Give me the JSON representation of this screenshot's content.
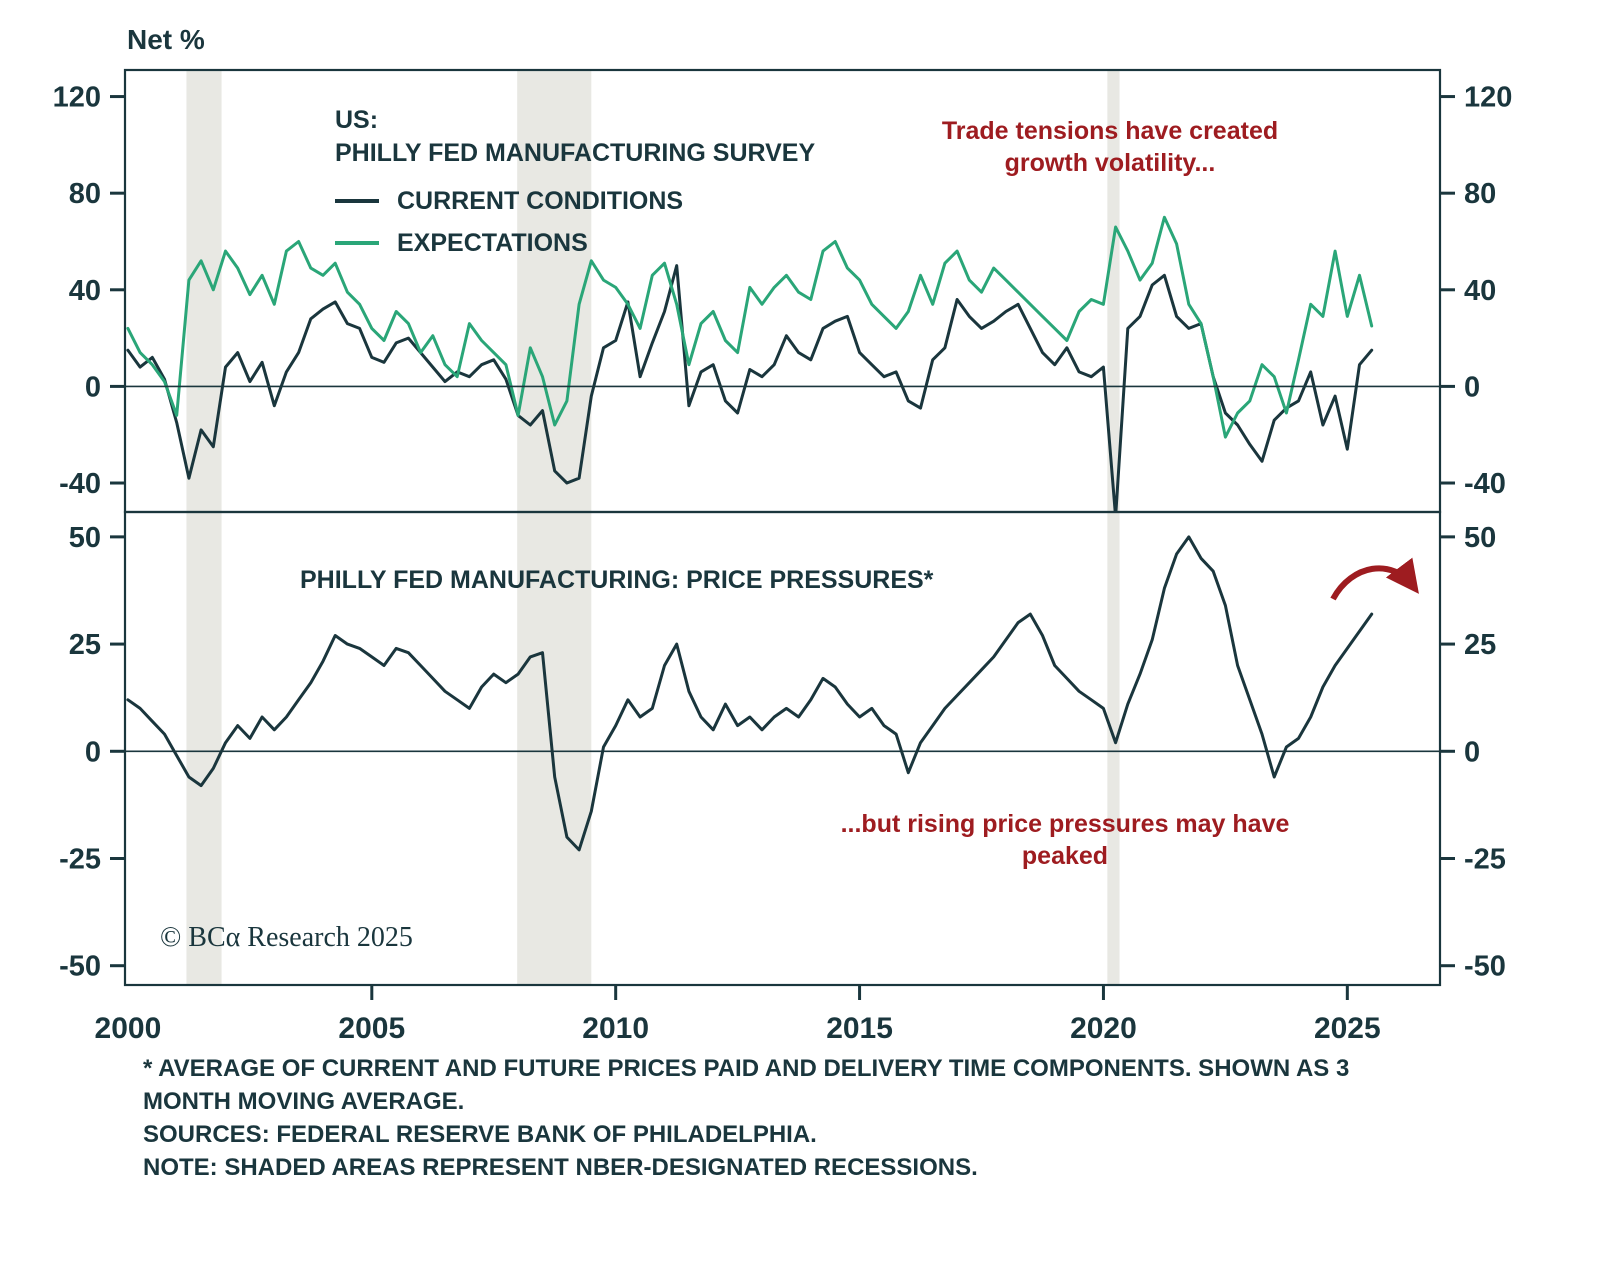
{
  "colors": {
    "navy": "#1a363d",
    "green": "#2aa678",
    "red": "#9e1c20",
    "recession_shading": "#e8e8e3"
  },
  "axis_title": "Net %",
  "top_panel": {
    "title_line1": "US:",
    "title_line2": "PHILLY FED MANUFACTURING SURVEY",
    "legend": [
      {
        "label": "CURRENT CONDITIONS",
        "color": "#1a363d"
      },
      {
        "label": "EXPECTATIONS",
        "color": "#2aa678"
      }
    ],
    "annotation": "Trade tensions have created growth volatility..."
  },
  "bottom_panel": {
    "title": "PHILLY FED MANUFACTURING: PRICE PRESSURES*",
    "annotation": "...but rising price pressures may have peaked"
  },
  "copyright": "© BCα Research 2025",
  "footnotes": [
    "* AVERAGE OF CURRENT AND FUTURE PRICES PAID AND DELIVERY TIME COMPONENTS. SHOWN AS 3 MONTH MOVING AVERAGE.",
    "SOURCES: FEDERAL RESERVE BANK OF PHILADELPHIA.",
    "NOTE: SHADED AREAS REPRESENT NBER-DESIGNATED RECESSIONS."
  ],
  "chart_data": [
    {
      "type": "line",
      "title": "US: PHILLY FED MANUFACTURING SURVEY",
      "ylabel": "Net %",
      "ylim": [
        -52,
        131
      ],
      "yticks": [
        120,
        80,
        40,
        0,
        -40
      ],
      "xlim": [
        1999.94,
        2026.9
      ],
      "xticks": [
        2000,
        2005,
        2010,
        2015,
        2020,
        2025
      ],
      "x_start": 2000,
      "x_step": 0.25,
      "grid": false,
      "legend_position": "upper-left",
      "recession_bands": [
        [
          2001.2,
          2001.92
        ],
        [
          2007.98,
          2009.5
        ],
        [
          2020.08,
          2020.33
        ]
      ],
      "series": [
        {
          "name": "CURRENT CONDITIONS",
          "color": "#1a363d",
          "values": [
            15,
            8,
            12,
            3,
            -15,
            -38,
            -18,
            -25,
            8,
            14,
            2,
            10,
            -8,
            6,
            14,
            28,
            32,
            35,
            26,
            24,
            12,
            10,
            18,
            20,
            14,
            8,
            2,
            6,
            4,
            9,
            11,
            3,
            -12,
            -16,
            -10,
            -35,
            -40,
            -38,
            -4,
            16,
            19,
            35,
            4,
            18,
            31,
            50,
            -8,
            6,
            9,
            -6,
            -11,
            7,
            4,
            9,
            21,
            14,
            11,
            24,
            27,
            29,
            14,
            9,
            4,
            6,
            -6,
            -9,
            11,
            16,
            36,
            29,
            24,
            27,
            31,
            34,
            24,
            14,
            9,
            16,
            6,
            4,
            8,
            -54,
            24,
            29,
            42,
            46,
            29,
            24,
            26,
            4,
            -11,
            -16,
            -24,
            -31,
            -14,
            -9,
            -6,
            6,
            -16,
            -4,
            -26,
            9,
            15
          ]
        },
        {
          "name": "EXPECTATIONS",
          "color": "#2aa678",
          "values": [
            24,
            14,
            9,
            2,
            -12,
            44,
            52,
            40,
            56,
            49,
            38,
            46,
            34,
            56,
            60,
            49,
            46,
            51,
            39,
            34,
            24,
            19,
            31,
            26,
            14,
            21,
            9,
            4,
            26,
            19,
            14,
            9,
            -12,
            16,
            4,
            -16,
            -6,
            34,
            52,
            44,
            41,
            34,
            24,
            46,
            51,
            34,
            9,
            26,
            31,
            19,
            14,
            41,
            34,
            41,
            46,
            39,
            36,
            56,
            60,
            49,
            44,
            34,
            29,
            24,
            31,
            46,
            34,
            51,
            56,
            44,
            39,
            49,
            44,
            39,
            34,
            29,
            24,
            19,
            31,
            36,
            34,
            66,
            56,
            44,
            51,
            70,
            59,
            34,
            26,
            4,
            -21,
            -11,
            -6,
            9,
            4,
            -11,
            11,
            34,
            29,
            56,
            29,
            46,
            25
          ]
        }
      ],
      "annotation": "Trade tensions have created growth volatility..."
    },
    {
      "type": "line",
      "title": "PHILLY FED MANUFACTURING: PRICE PRESSURES*",
      "ylim": [
        -54.5,
        55.8
      ],
      "yticks": [
        50,
        25,
        0,
        -25,
        -50
      ],
      "xlim": [
        1999.94,
        2026.9
      ],
      "xticks": [
        2000,
        2005,
        2010,
        2015,
        2020,
        2025
      ],
      "x_start": 2000,
      "x_step": 0.25,
      "grid": false,
      "series": [
        {
          "name": "PRICE PRESSURES",
          "color": "#1a363d",
          "values": [
            12,
            10,
            7,
            4,
            -1,
            -6,
            -8,
            -4,
            2,
            6,
            3,
            8,
            5,
            8,
            12,
            16,
            21,
            27,
            25,
            24,
            22,
            20,
            24,
            23,
            20,
            17,
            14,
            12,
            10,
            15,
            18,
            16,
            18,
            22,
            23,
            -6,
            -20,
            -23,
            -14,
            1,
            6,
            12,
            8,
            10,
            20,
            25,
            14,
            8,
            5,
            11,
            6,
            8,
            5,
            8,
            10,
            8,
            12,
            17,
            15,
            11,
            8,
            10,
            6,
            4,
            -5,
            2,
            6,
            10,
            13,
            16,
            19,
            22,
            26,
            30,
            32,
            27,
            20,
            17,
            14,
            12,
            10,
            2,
            11,
            18,
            26,
            38,
            46,
            50,
            45,
            42,
            34,
            20,
            12,
            4,
            -6,
            1,
            3,
            8,
            15,
            20,
            24,
            28,
            32
          ]
        }
      ],
      "annotation": "...but rising price pressures may have peaked"
    }
  ]
}
